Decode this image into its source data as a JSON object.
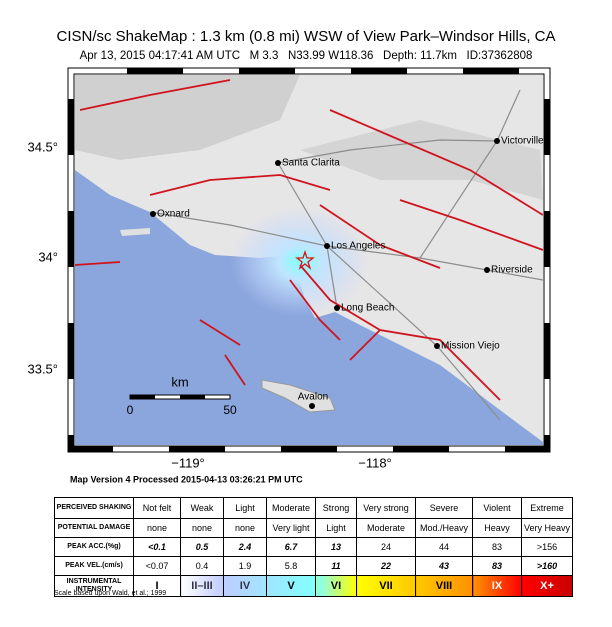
{
  "header": {
    "title": "CISN/sc ShakeMap : 1.3 km (0.8 mi) WSW of View Park–Windsor Hills, CA",
    "subtitle": "Apr 13, 2015 04:17:41 AM UTC   M 3.3   N33.99 W118.36   Depth: 11.7km   ID:37362808"
  },
  "map": {
    "lat_labels": [
      "34.5°",
      "34°",
      "33.5°"
    ],
    "lon_labels": [
      "−119°",
      "−118°"
    ],
    "places": [
      "Victorville",
      "Santa Clarita",
      "Oxnard",
      "Los Angeles",
      "Riverside",
      "Long Beach",
      "Mission Viejo",
      "Avalon"
    ],
    "scale": {
      "unit": "km",
      "labels": [
        "0",
        "50"
      ]
    }
  },
  "version": "Map Version 4 Processed 2015-04-13 03:26:21 PM UTC",
  "table": {
    "rows": [
      [
        "PERCEIVED SHAKING",
        "Not felt",
        "Weak",
        "Light",
        "Moderate",
        "Strong",
        "Very strong",
        "Severe",
        "Violent",
        "Extreme"
      ],
      [
        "POTENTIAL DAMAGE",
        "none",
        "none",
        "none",
        "Very light",
        "Light",
        "Moderate",
        "Mod./Heavy",
        "Heavy",
        "Very Heavy"
      ],
      [
        "PEAK ACC.(%g)",
        "<0.1",
        "0.5",
        "2.4",
        "6.7",
        "13",
        "24",
        "44",
        "83",
        ">156"
      ],
      [
        "PEAK VEL.(cm/s)",
        "<0.07",
        "0.4",
        "1.9",
        "5.8",
        "11",
        "22",
        "43",
        "83",
        ">160"
      ],
      [
        "INSTRUMENTAL INTENSITY",
        "I",
        "II–III",
        "IV",
        "V",
        "VI",
        "VII",
        "VIII",
        "IX",
        "X+"
      ]
    ]
  },
  "footnote": "Scale based upon Wald, et al.; 1999"
}
